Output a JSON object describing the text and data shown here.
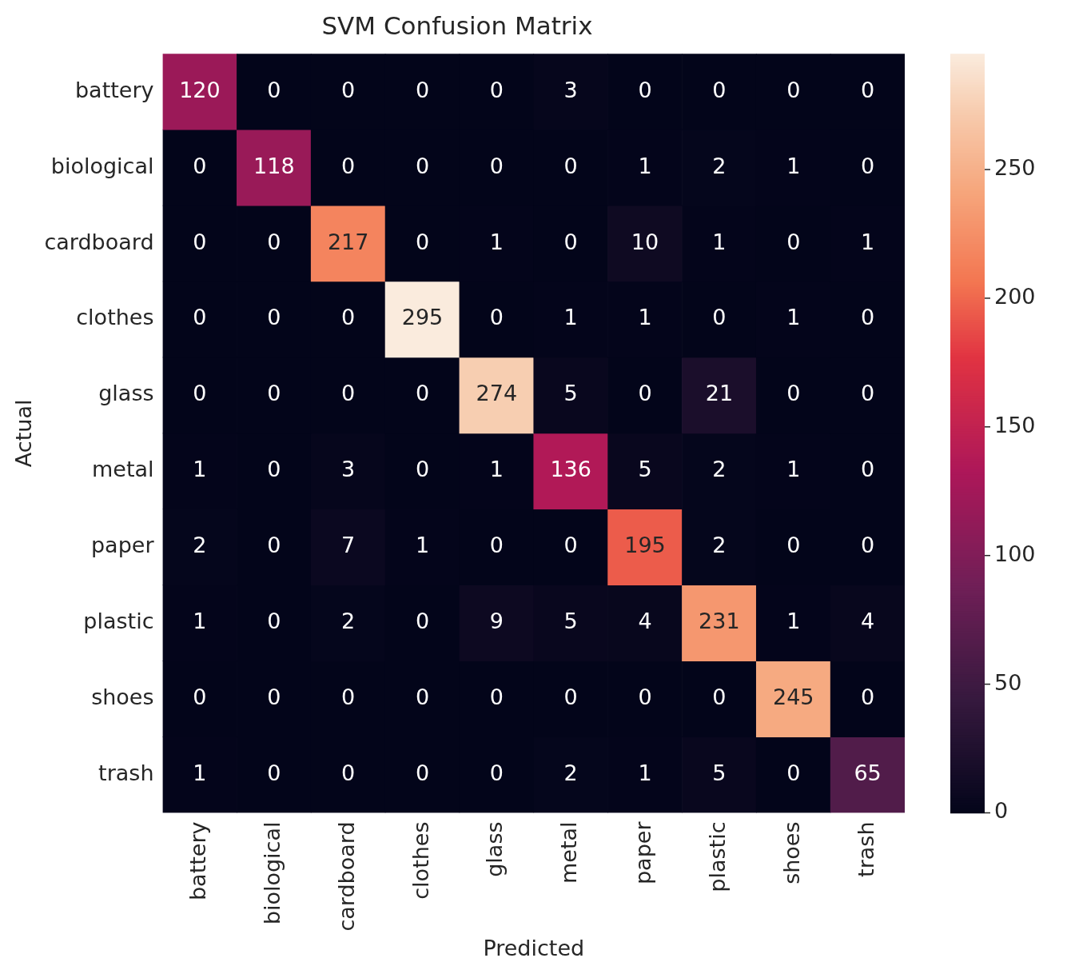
{
  "chart_data": {
    "type": "heatmap",
    "title": "SVM Confusion Matrix",
    "xlabel": "Predicted",
    "ylabel": "Actual",
    "categories": [
      "battery",
      "biological",
      "cardboard",
      "clothes",
      "glass",
      "metal",
      "paper",
      "plastic",
      "shoes",
      "trash"
    ],
    "y_categories": [
      "battery",
      "biological",
      "cardboard",
      "clothes",
      "glass",
      "metal",
      "paper",
      "plastic",
      "shoes",
      "trash"
    ],
    "cells": [
      [
        120,
        0,
        0,
        0,
        0,
        3,
        0,
        0,
        0,
        0
      ],
      [
        0,
        118,
        0,
        0,
        0,
        0,
        1,
        2,
        1,
        0
      ],
      [
        0,
        0,
        217,
        0,
        1,
        0,
        10,
        1,
        0,
        1
      ],
      [
        0,
        0,
        0,
        295,
        0,
        1,
        1,
        0,
        1,
        0
      ],
      [
        0,
        0,
        0,
        0,
        274,
        5,
        0,
        21,
        0,
        0
      ],
      [
        1,
        0,
        3,
        0,
        1,
        136,
        5,
        2,
        1,
        0
      ],
      [
        2,
        0,
        7,
        1,
        0,
        0,
        195,
        2,
        0,
        0
      ],
      [
        1,
        0,
        2,
        0,
        9,
        5,
        4,
        231,
        1,
        4
      ],
      [
        0,
        0,
        0,
        0,
        0,
        0,
        0,
        0,
        245,
        0
      ],
      [
        1,
        0,
        0,
        0,
        0,
        2,
        1,
        5,
        0,
        65
      ]
    ],
    "clim": [
      0,
      295
    ],
    "cticks": [
      0,
      50,
      100,
      150,
      200,
      250
    ],
    "data_labels": true
  }
}
